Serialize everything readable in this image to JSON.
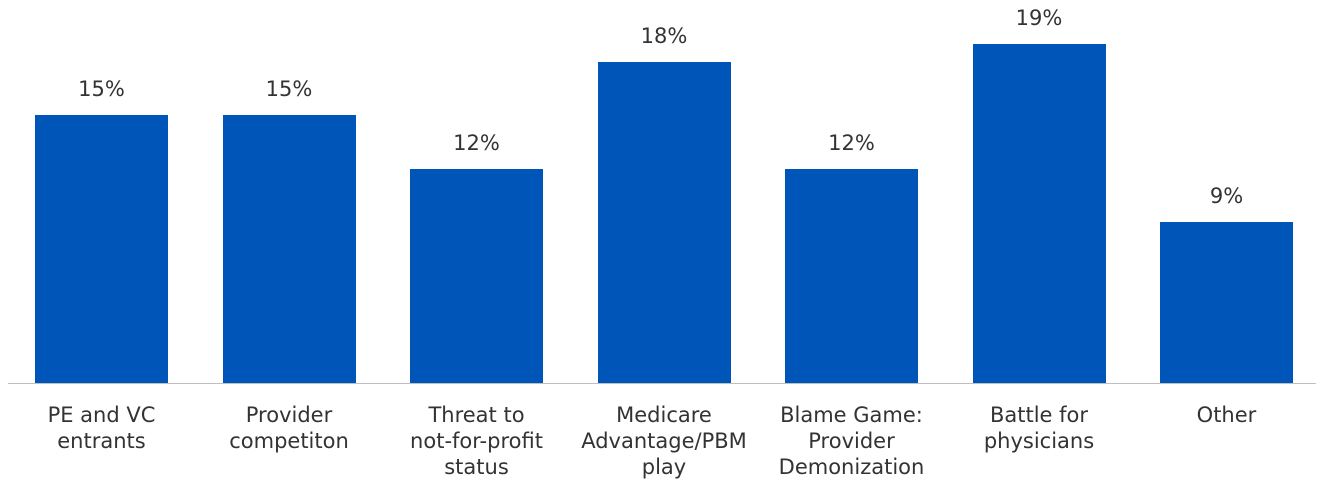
{
  "chart_data": {
    "type": "bar",
    "categories": [
      "PE and VC\nentrants",
      "Provider\ncompetiton",
      "Threat to\nnot-for-profit\nstatus",
      "Medicare\nAdvantage/PBM\nplay",
      "Blame Game:\nProvider\nDemonization",
      "Battle for\nphysicians",
      "Other"
    ],
    "values": [
      15,
      15,
      12,
      18,
      12,
      19,
      9
    ],
    "value_labels": [
      "15%",
      "15%",
      "12%",
      "18%",
      "12%",
      "19%",
      "9%"
    ],
    "color": "#0055b8"
  }
}
